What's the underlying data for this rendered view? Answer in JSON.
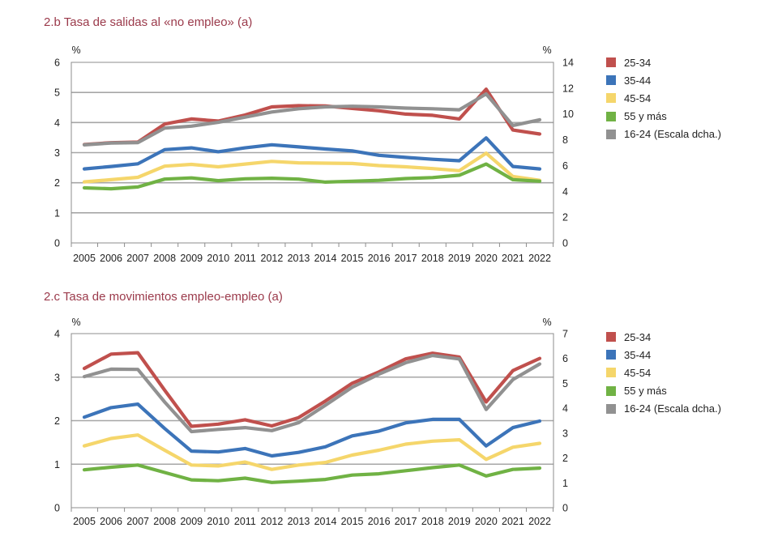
{
  "chart_data": [
    {
      "type": "line",
      "title": "2.b  Tasa de salidas al «no empleo» (a)",
      "ylabel_left": "%",
      "ylabel_right": "%",
      "ylim_left": [
        0,
        6
      ],
      "yticks_left": [
        "0",
        "1",
        "2",
        "3",
        "4",
        "5",
        "6"
      ],
      "ylim_right": [
        0,
        14
      ],
      "yticks_right": [
        "0",
        "2",
        "4",
        "6",
        "8",
        "10",
        "12",
        "14"
      ],
      "categories": [
        "2005",
        "2006",
        "2007",
        "2008",
        "2009",
        "2010",
        "2011",
        "2012",
        "2013",
        "2014",
        "2015",
        "2016",
        "2017",
        "2018",
        "2019",
        "2020",
        "2021",
        "2022"
      ],
      "series": [
        {
          "name": "25-34",
          "color": "#c0504d",
          "axis": "left",
          "values": [
            3.27,
            3.33,
            3.35,
            3.95,
            4.12,
            4.05,
            4.25,
            4.52,
            4.56,
            4.55,
            4.47,
            4.39,
            4.28,
            4.24,
            4.12,
            5.11,
            3.75,
            3.62
          ]
        },
        {
          "name": "35-44",
          "color": "#3c74b9",
          "axis": "left",
          "values": [
            2.46,
            2.54,
            2.63,
            3.1,
            3.16,
            3.03,
            3.16,
            3.26,
            3.19,
            3.12,
            3.06,
            2.91,
            2.84,
            2.78,
            2.73,
            3.49,
            2.54,
            2.46
          ]
        },
        {
          "name": "45-54",
          "color": "#f5d66b",
          "axis": "left",
          "values": [
            2.03,
            2.1,
            2.18,
            2.55,
            2.61,
            2.53,
            2.62,
            2.71,
            2.66,
            2.65,
            2.64,
            2.57,
            2.53,
            2.47,
            2.4,
            2.98,
            2.21,
            2.08
          ]
        },
        {
          "name": "55 y más",
          "color": "#70b244",
          "axis": "left",
          "values": [
            1.83,
            1.8,
            1.86,
            2.12,
            2.16,
            2.07,
            2.13,
            2.15,
            2.12,
            2.02,
            2.05,
            2.08,
            2.14,
            2.17,
            2.25,
            2.62,
            2.1,
            2.05
          ]
        },
        {
          "name": "16-24 (Escala dcha.)",
          "color": "#919191",
          "axis": "right",
          "values": [
            7.6,
            7.75,
            7.78,
            8.9,
            9.05,
            9.35,
            9.75,
            10.15,
            10.4,
            10.55,
            10.6,
            10.55,
            10.45,
            10.4,
            10.32,
            11.55,
            9.1,
            9.55
          ]
        }
      ]
    },
    {
      "type": "line",
      "title": "2.c  Tasa de movimientos empleo-empleo (a)",
      "ylabel_left": "%",
      "ylabel_right": "%",
      "ylim_left": [
        0,
        4
      ],
      "yticks_left": [
        "0",
        "1",
        "2",
        "3",
        "4"
      ],
      "ylim_right": [
        0,
        7
      ],
      "yticks_right": [
        "0",
        "1",
        "2",
        "3",
        "4",
        "5",
        "6",
        "7"
      ],
      "categories": [
        "2005",
        "2006",
        "2007",
        "2008",
        "2009",
        "2010",
        "2011",
        "2012",
        "2013",
        "2014",
        "2015",
        "2016",
        "2017",
        "2018",
        "2019",
        "2020",
        "2021",
        "2022"
      ],
      "series": [
        {
          "name": "25-34",
          "color": "#c0504d",
          "axis": "left",
          "values": [
            3.2,
            3.53,
            3.56,
            2.7,
            1.87,
            1.92,
            2.02,
            1.88,
            2.07,
            2.45,
            2.86,
            3.12,
            3.42,
            3.55,
            3.46,
            2.43,
            3.15,
            3.43
          ]
        },
        {
          "name": "35-44",
          "color": "#3c74b9",
          "axis": "left",
          "values": [
            2.08,
            2.3,
            2.38,
            1.82,
            1.3,
            1.28,
            1.36,
            1.19,
            1.27,
            1.4,
            1.65,
            1.76,
            1.95,
            2.03,
            2.03,
            1.42,
            1.84,
            1.99
          ]
        },
        {
          "name": "45-54",
          "color": "#f5d66b",
          "axis": "left",
          "values": [
            1.42,
            1.59,
            1.67,
            1.32,
            0.98,
            0.96,
            1.05,
            0.88,
            0.98,
            1.04,
            1.21,
            1.32,
            1.46,
            1.53,
            1.56,
            1.11,
            1.39,
            1.48
          ]
        },
        {
          "name": "55 y más",
          "color": "#70b244",
          "axis": "left",
          "values": [
            0.87,
            0.93,
            0.98,
            0.81,
            0.64,
            0.62,
            0.68,
            0.58,
            0.61,
            0.65,
            0.75,
            0.78,
            0.85,
            0.92,
            0.98,
            0.73,
            0.88,
            0.91
          ]
        },
        {
          "name": "16-24 (Escala dcha.)",
          "color": "#919191",
          "axis": "right",
          "values": [
            5.27,
            5.57,
            5.56,
            4.25,
            3.06,
            3.15,
            3.22,
            3.1,
            3.42,
            4.12,
            4.84,
            5.37,
            5.83,
            6.12,
            5.98,
            3.95,
            5.15,
            5.78
          ]
        }
      ]
    }
  ]
}
